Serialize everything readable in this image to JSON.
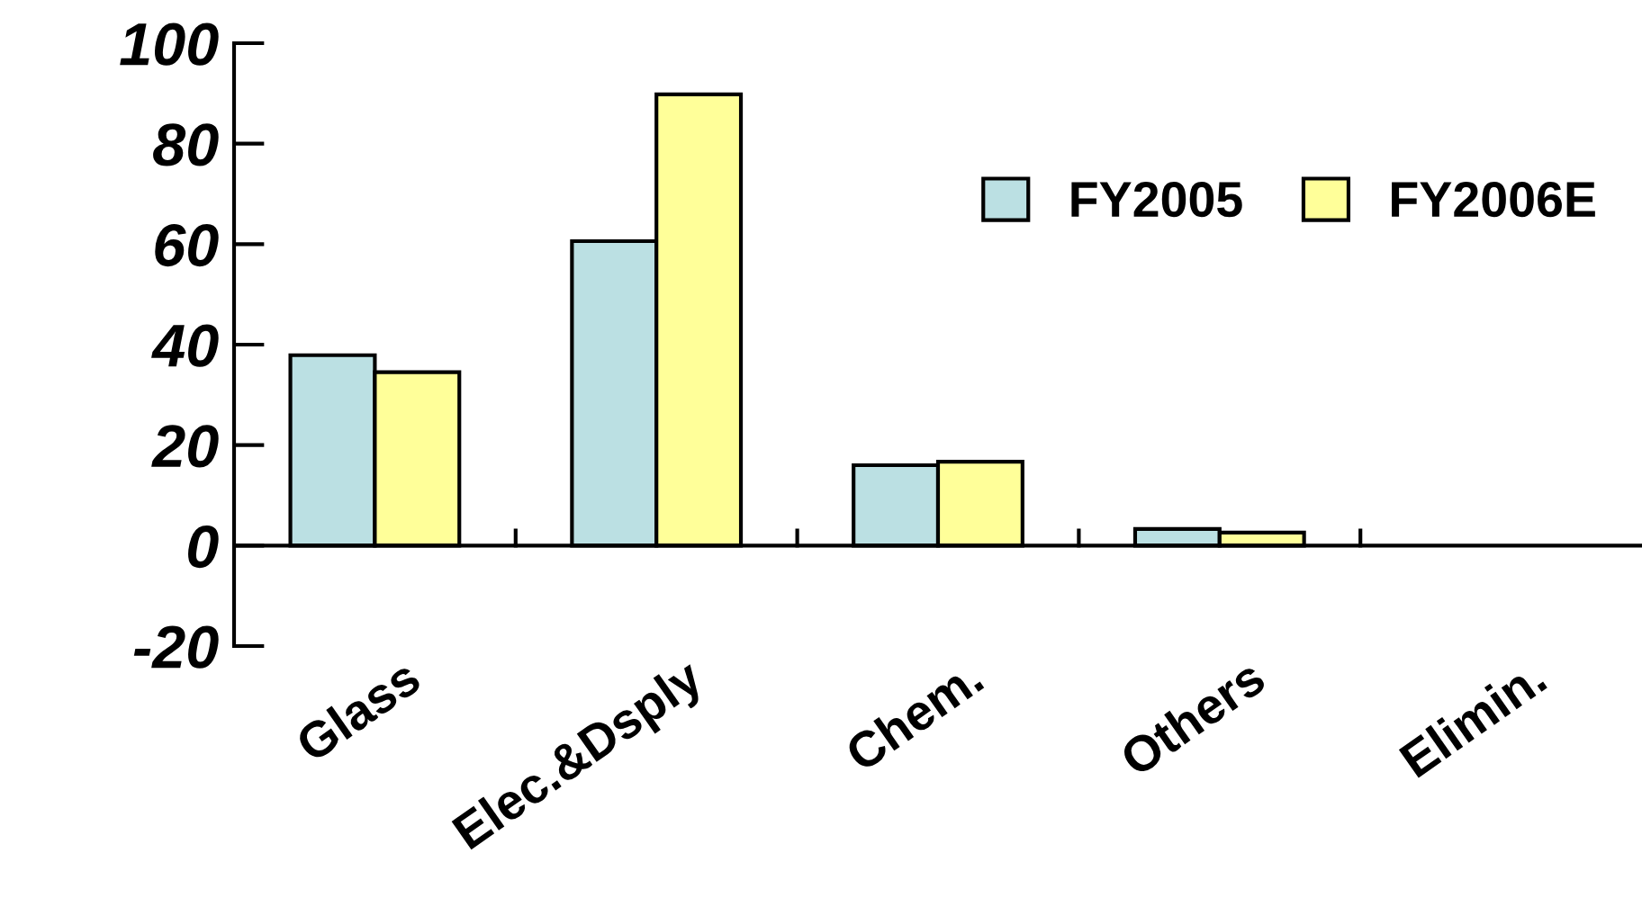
{
  "chart_data": {
    "type": "bar",
    "categories": [
      "Glass",
      "Elec.&Dsply",
      "Chem.",
      "Others",
      "Elimin."
    ],
    "series": [
      {
        "name": "FY2005",
        "color": "#bbe0e3",
        "values": [
          37.9,
          60.6,
          16.0,
          3.3,
          null
        ]
      },
      {
        "name": "FY2006E",
        "color": "#ffff99",
        "values": [
          34.5,
          89.8,
          16.7,
          2.6,
          null
        ]
      }
    ],
    "ylim": [
      -20,
      100
    ],
    "yticks": [
      -20,
      0,
      20,
      40,
      60,
      80,
      100
    ],
    "grid": false,
    "legend": "top right"
  }
}
